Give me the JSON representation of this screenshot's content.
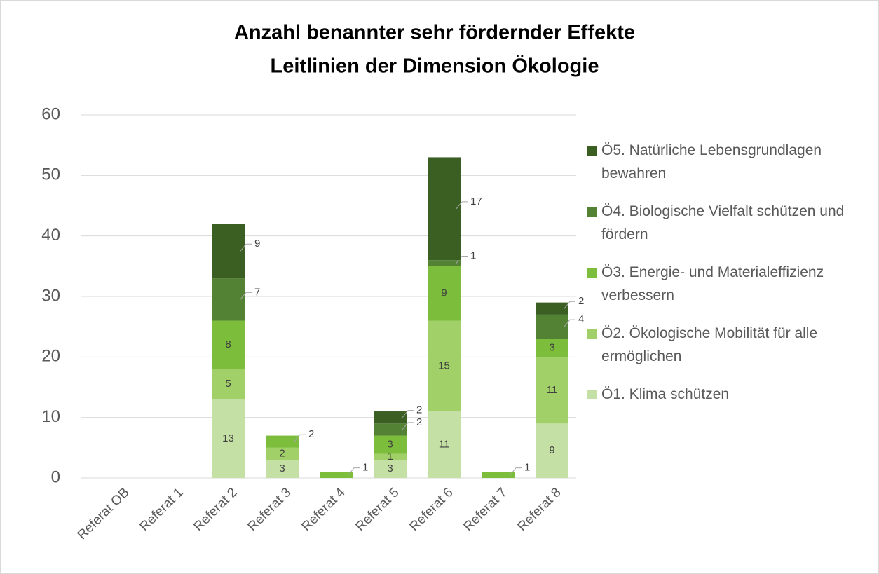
{
  "chart_data": {
    "type": "stacked_bar",
    "title": "Anzahl benannter sehr fördernder Effekte",
    "subtitle": "Leitlinien der Dimension Ökologie",
    "categories": [
      "Referat OB",
      "Referat 1",
      "Referat 2",
      "Referat 3",
      "Referat 4",
      "Referat 5",
      "Referat 6",
      "Referat 7",
      "Referat 8"
    ],
    "series": [
      {
        "name": "Ö1. Klima schützen",
        "color": "#c5e0a5",
        "values": [
          null,
          null,
          13,
          3,
          null,
          3,
          11,
          null,
          9
        ]
      },
      {
        "name": "Ö2. Ökologische Mobilität für alle ermöglichen",
        "color": "#a0d067",
        "values": [
          null,
          null,
          5,
          2,
          null,
          1,
          15,
          null,
          11
        ]
      },
      {
        "name": "Ö3. Energie- und Materialeffizienz verbessern",
        "color": "#7cbd3c",
        "values": [
          null,
          null,
          8,
          2,
          1,
          3,
          9,
          1,
          3
        ]
      },
      {
        "name": "Ö4. Biologische Vielfalt schützen und fördern",
        "color": "#548235",
        "values": [
          null,
          null,
          7,
          null,
          null,
          2,
          1,
          null,
          4
        ]
      },
      {
        "name": "Ö5. Natürliche Lebensgrundlagen bewahren",
        "color": "#3b5e22",
        "values": [
          null,
          null,
          9,
          null,
          null,
          2,
          17,
          null,
          2
        ]
      }
    ],
    "ylim": [
      0,
      60
    ],
    "yticks": [
      0,
      10,
      20,
      30,
      40,
      50,
      60
    ],
    "grid": true,
    "legend": "right"
  }
}
